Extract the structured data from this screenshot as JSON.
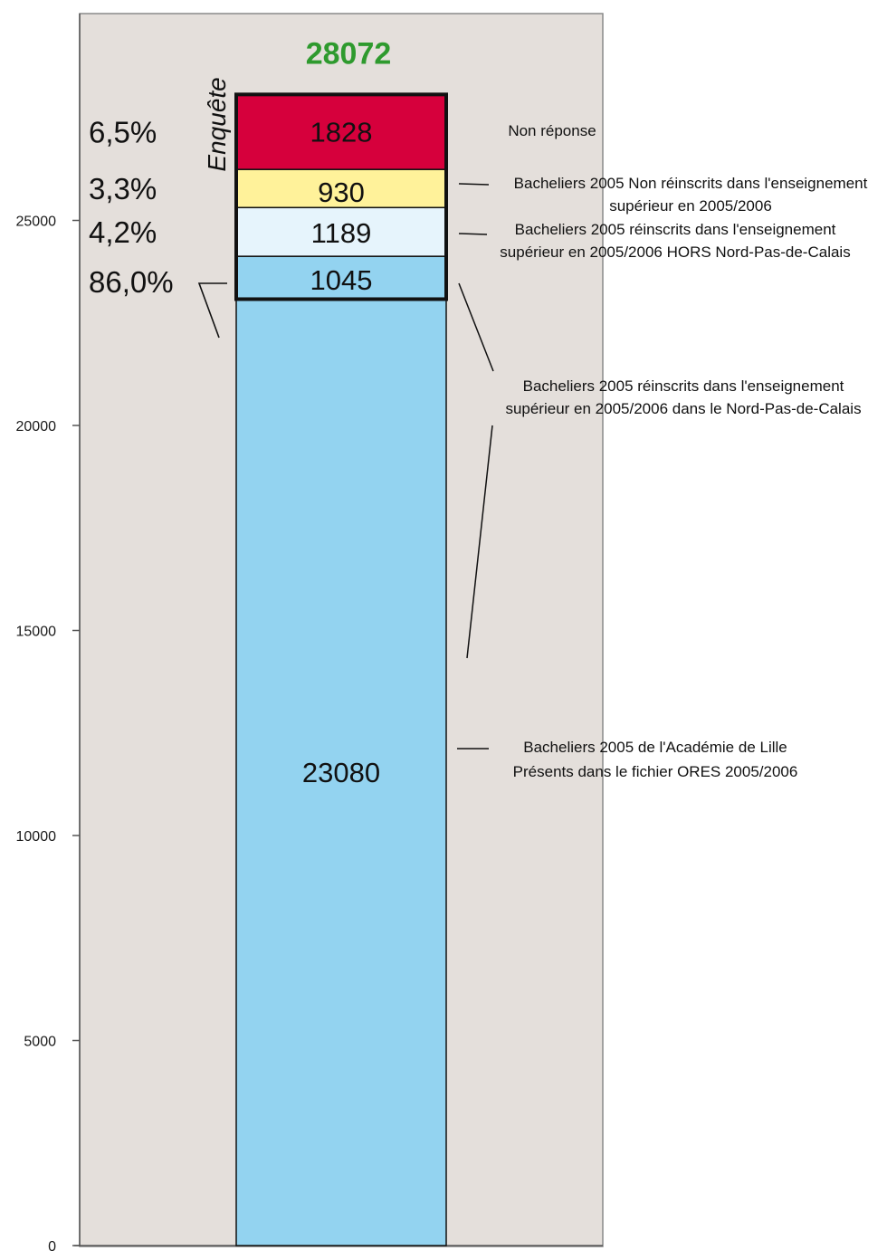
{
  "chart_data": {
    "type": "bar",
    "stacked": true,
    "ylim": [
      0,
      30000
    ],
    "yticks": [
      0,
      5000,
      10000,
      15000,
      20000,
      25000
    ],
    "total_label": "28072",
    "survey_label": "Enquête",
    "segments": [
      {
        "value": 23080,
        "label": "23080",
        "color": "#93d3f0",
        "annotation": [
          "Bacheliers 2005 de l'Académie de Lille",
          "Présents dans le fichier ORES 2005/2006"
        ]
      },
      {
        "value": 1045,
        "label": "1045",
        "color": "#93d3f0",
        "annotation": [
          "Bacheliers 2005 réinscrits dans l'enseignement",
          "supérieur en 2005/2006 dans le Nord-Pas-de-Calais"
        ]
      },
      {
        "value": 1189,
        "label": "1189",
        "color": "#e6f4fc",
        "annotation": [
          "Bacheliers 2005 réinscrits dans l'enseignement",
          "supérieur en 2005/2006 HORS Nord-Pas-de-Calais"
        ]
      },
      {
        "value": 930,
        "label": "930",
        "color": "#fff29a",
        "annotation": [
          "Bacheliers 2005 Non réinscrits dans l'enseignement",
          "supérieur en 2005/2006"
        ]
      },
      {
        "value": 1828,
        "label": "1828",
        "color": "#d6003c",
        "annotation": [
          "Non réponse"
        ]
      }
    ],
    "percentages": [
      "86,0%",
      "4,2%",
      "3,3%",
      "6,5%"
    ],
    "colors": {
      "plot_bg": "#e4dfdb",
      "total": "#2e9a2e",
      "axis": "#555555"
    }
  }
}
